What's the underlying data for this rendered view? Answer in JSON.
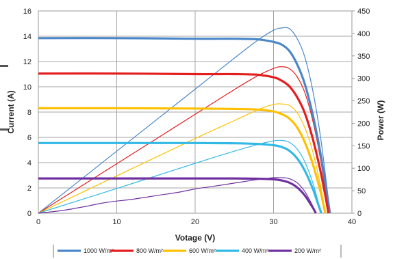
{
  "chart_data": {
    "type": "line",
    "title": "",
    "xlabel": "Votage (V)",
    "ylabel_left": "Current (A)",
    "ylabel_right": "Power (W)",
    "xlim": [
      0,
      40
    ],
    "ylim_left": [
      0,
      16
    ],
    "ylim_right": [
      0,
      450
    ],
    "x_ticks": [
      "0",
      "10",
      "20",
      "30",
      "40"
    ],
    "y_left_ticks": [
      "0",
      "2",
      "4",
      "6",
      "8",
      "10",
      "12",
      "14",
      "16"
    ],
    "y_right_ticks": [
      "0",
      "50",
      "100",
      "150",
      "200",
      "250",
      "300",
      "350",
      "400",
      "450"
    ],
    "grid": true,
    "legend_position": "bottom",
    "series": [
      {
        "name": "1000 W/m²",
        "color": "#4a86c8",
        "isc": 13.85,
        "voc": 37.2,
        "iv_curve": [
          [
            0,
            13.85
          ],
          [
            10,
            13.85
          ],
          [
            20,
            13.8
          ],
          [
            25,
            13.8
          ],
          [
            28,
            13.75
          ],
          [
            30,
            13.55
          ],
          [
            31,
            13.35
          ],
          [
            32,
            12.85
          ],
          [
            33,
            11.8
          ],
          [
            34,
            10.2
          ],
          [
            35,
            7.8
          ],
          [
            36,
            4.7
          ],
          [
            36.8,
            1.6
          ],
          [
            37.2,
            0
          ]
        ],
        "pv_curve": [
          [
            0,
            0
          ],
          [
            10,
            138
          ],
          [
            20,
            276
          ],
          [
            25,
            345
          ],
          [
            28,
            385
          ],
          [
            30,
            407
          ],
          [
            31,
            412
          ],
          [
            32,
            411
          ],
          [
            33,
            389
          ],
          [
            34,
            347
          ],
          [
            35,
            273
          ],
          [
            36,
            169
          ],
          [
            36.8,
            59
          ],
          [
            37.2,
            0
          ]
        ]
      },
      {
        "name": "800 W/m²",
        "color": "#e41e1e",
        "isc": 11.05,
        "voc": 37.0,
        "iv_curve": [
          [
            0,
            11.05
          ],
          [
            10,
            11.05
          ],
          [
            20,
            11.0
          ],
          [
            25,
            11.0
          ],
          [
            28,
            10.95
          ],
          [
            30,
            10.75
          ],
          [
            31,
            10.5
          ],
          [
            32,
            10.05
          ],
          [
            33,
            9.2
          ],
          [
            34,
            7.9
          ],
          [
            35,
            5.9
          ],
          [
            36,
            3.3
          ],
          [
            36.7,
            1.1
          ],
          [
            37.0,
            0
          ]
        ],
        "pv_curve": [
          [
            0,
            0
          ],
          [
            10,
            110
          ],
          [
            20,
            220
          ],
          [
            25,
            275
          ],
          [
            28,
            306
          ],
          [
            30,
            322
          ],
          [
            31,
            326
          ],
          [
            32,
            322
          ],
          [
            33,
            304
          ],
          [
            34,
            268
          ],
          [
            35,
            206
          ],
          [
            36,
            119
          ],
          [
            36.7,
            40
          ],
          [
            37.0,
            0
          ]
        ]
      },
      {
        "name": "600 W/m²",
        "color": "#ffc000",
        "isc": 8.3,
        "voc": 36.6,
        "iv_curve": [
          [
            0,
            8.3
          ],
          [
            10,
            8.3
          ],
          [
            20,
            8.28
          ],
          [
            25,
            8.25
          ],
          [
            28,
            8.2
          ],
          [
            30,
            8.05
          ],
          [
            31,
            7.85
          ],
          [
            32,
            7.5
          ],
          [
            33,
            6.8
          ],
          [
            34,
            5.6
          ],
          [
            35,
            3.9
          ],
          [
            36,
            1.7
          ],
          [
            36.6,
            0
          ]
        ],
        "pv_curve": [
          [
            0,
            0
          ],
          [
            10,
            83
          ],
          [
            20,
            166
          ],
          [
            25,
            206
          ],
          [
            28,
            230
          ],
          [
            30,
            242
          ],
          [
            31,
            243
          ],
          [
            32,
            240
          ],
          [
            33,
            224
          ],
          [
            34,
            190
          ],
          [
            35,
            137
          ],
          [
            36,
            61
          ],
          [
            36.6,
            0
          ]
        ]
      },
      {
        "name": "400 W/m²",
        "color": "#31b9e6",
        "isc": 5.55,
        "voc": 36.1,
        "iv_curve": [
          [
            0,
            5.55
          ],
          [
            10,
            5.55
          ],
          [
            20,
            5.55
          ],
          [
            25,
            5.53
          ],
          [
            28,
            5.48
          ],
          [
            30,
            5.38
          ],
          [
            31,
            5.25
          ],
          [
            32,
            4.95
          ],
          [
            33,
            4.35
          ],
          [
            34,
            3.35
          ],
          [
            35,
            1.95
          ],
          [
            35.7,
            0.7
          ],
          [
            36.1,
            0
          ]
        ],
        "pv_curve": [
          [
            0,
            0
          ],
          [
            10,
            55
          ],
          [
            20,
            111
          ],
          [
            25,
            138
          ],
          [
            28,
            153
          ],
          [
            30,
            161
          ],
          [
            31,
            162
          ],
          [
            32,
            158
          ],
          [
            33,
            143
          ],
          [
            34,
            114
          ],
          [
            35,
            68
          ],
          [
            35.7,
            25
          ],
          [
            36.1,
            0
          ]
        ]
      },
      {
        "name": "200 W/m²",
        "color": "#7030a0",
        "isc": 2.75,
        "voc": 35.4,
        "iv_curve": [
          [
            0,
            2.75
          ],
          [
            10,
            2.75
          ],
          [
            20,
            2.75
          ],
          [
            25,
            2.75
          ],
          [
            28,
            2.73
          ],
          [
            30,
            2.68
          ],
          [
            31,
            2.6
          ],
          [
            32,
            2.42
          ],
          [
            33,
            2.05
          ],
          [
            34,
            1.4
          ],
          [
            35,
            0.45
          ],
          [
            35.4,
            0
          ]
        ],
        "pv_curve": [
          [
            0,
            0
          ],
          [
            3,
            6
          ],
          [
            6,
            15
          ],
          [
            8,
            22
          ],
          [
            10,
            27
          ],
          [
            12,
            31
          ],
          [
            15,
            39
          ],
          [
            18,
            47
          ],
          [
            20,
            54
          ],
          [
            22,
            59
          ],
          [
            25,
            67
          ],
          [
            28,
            75
          ],
          [
            30,
            79
          ],
          [
            31,
            79
          ],
          [
            32,
            77
          ],
          [
            33,
            68
          ],
          [
            34,
            48
          ],
          [
            35,
            16
          ],
          [
            35.4,
            0
          ]
        ]
      }
    ]
  }
}
